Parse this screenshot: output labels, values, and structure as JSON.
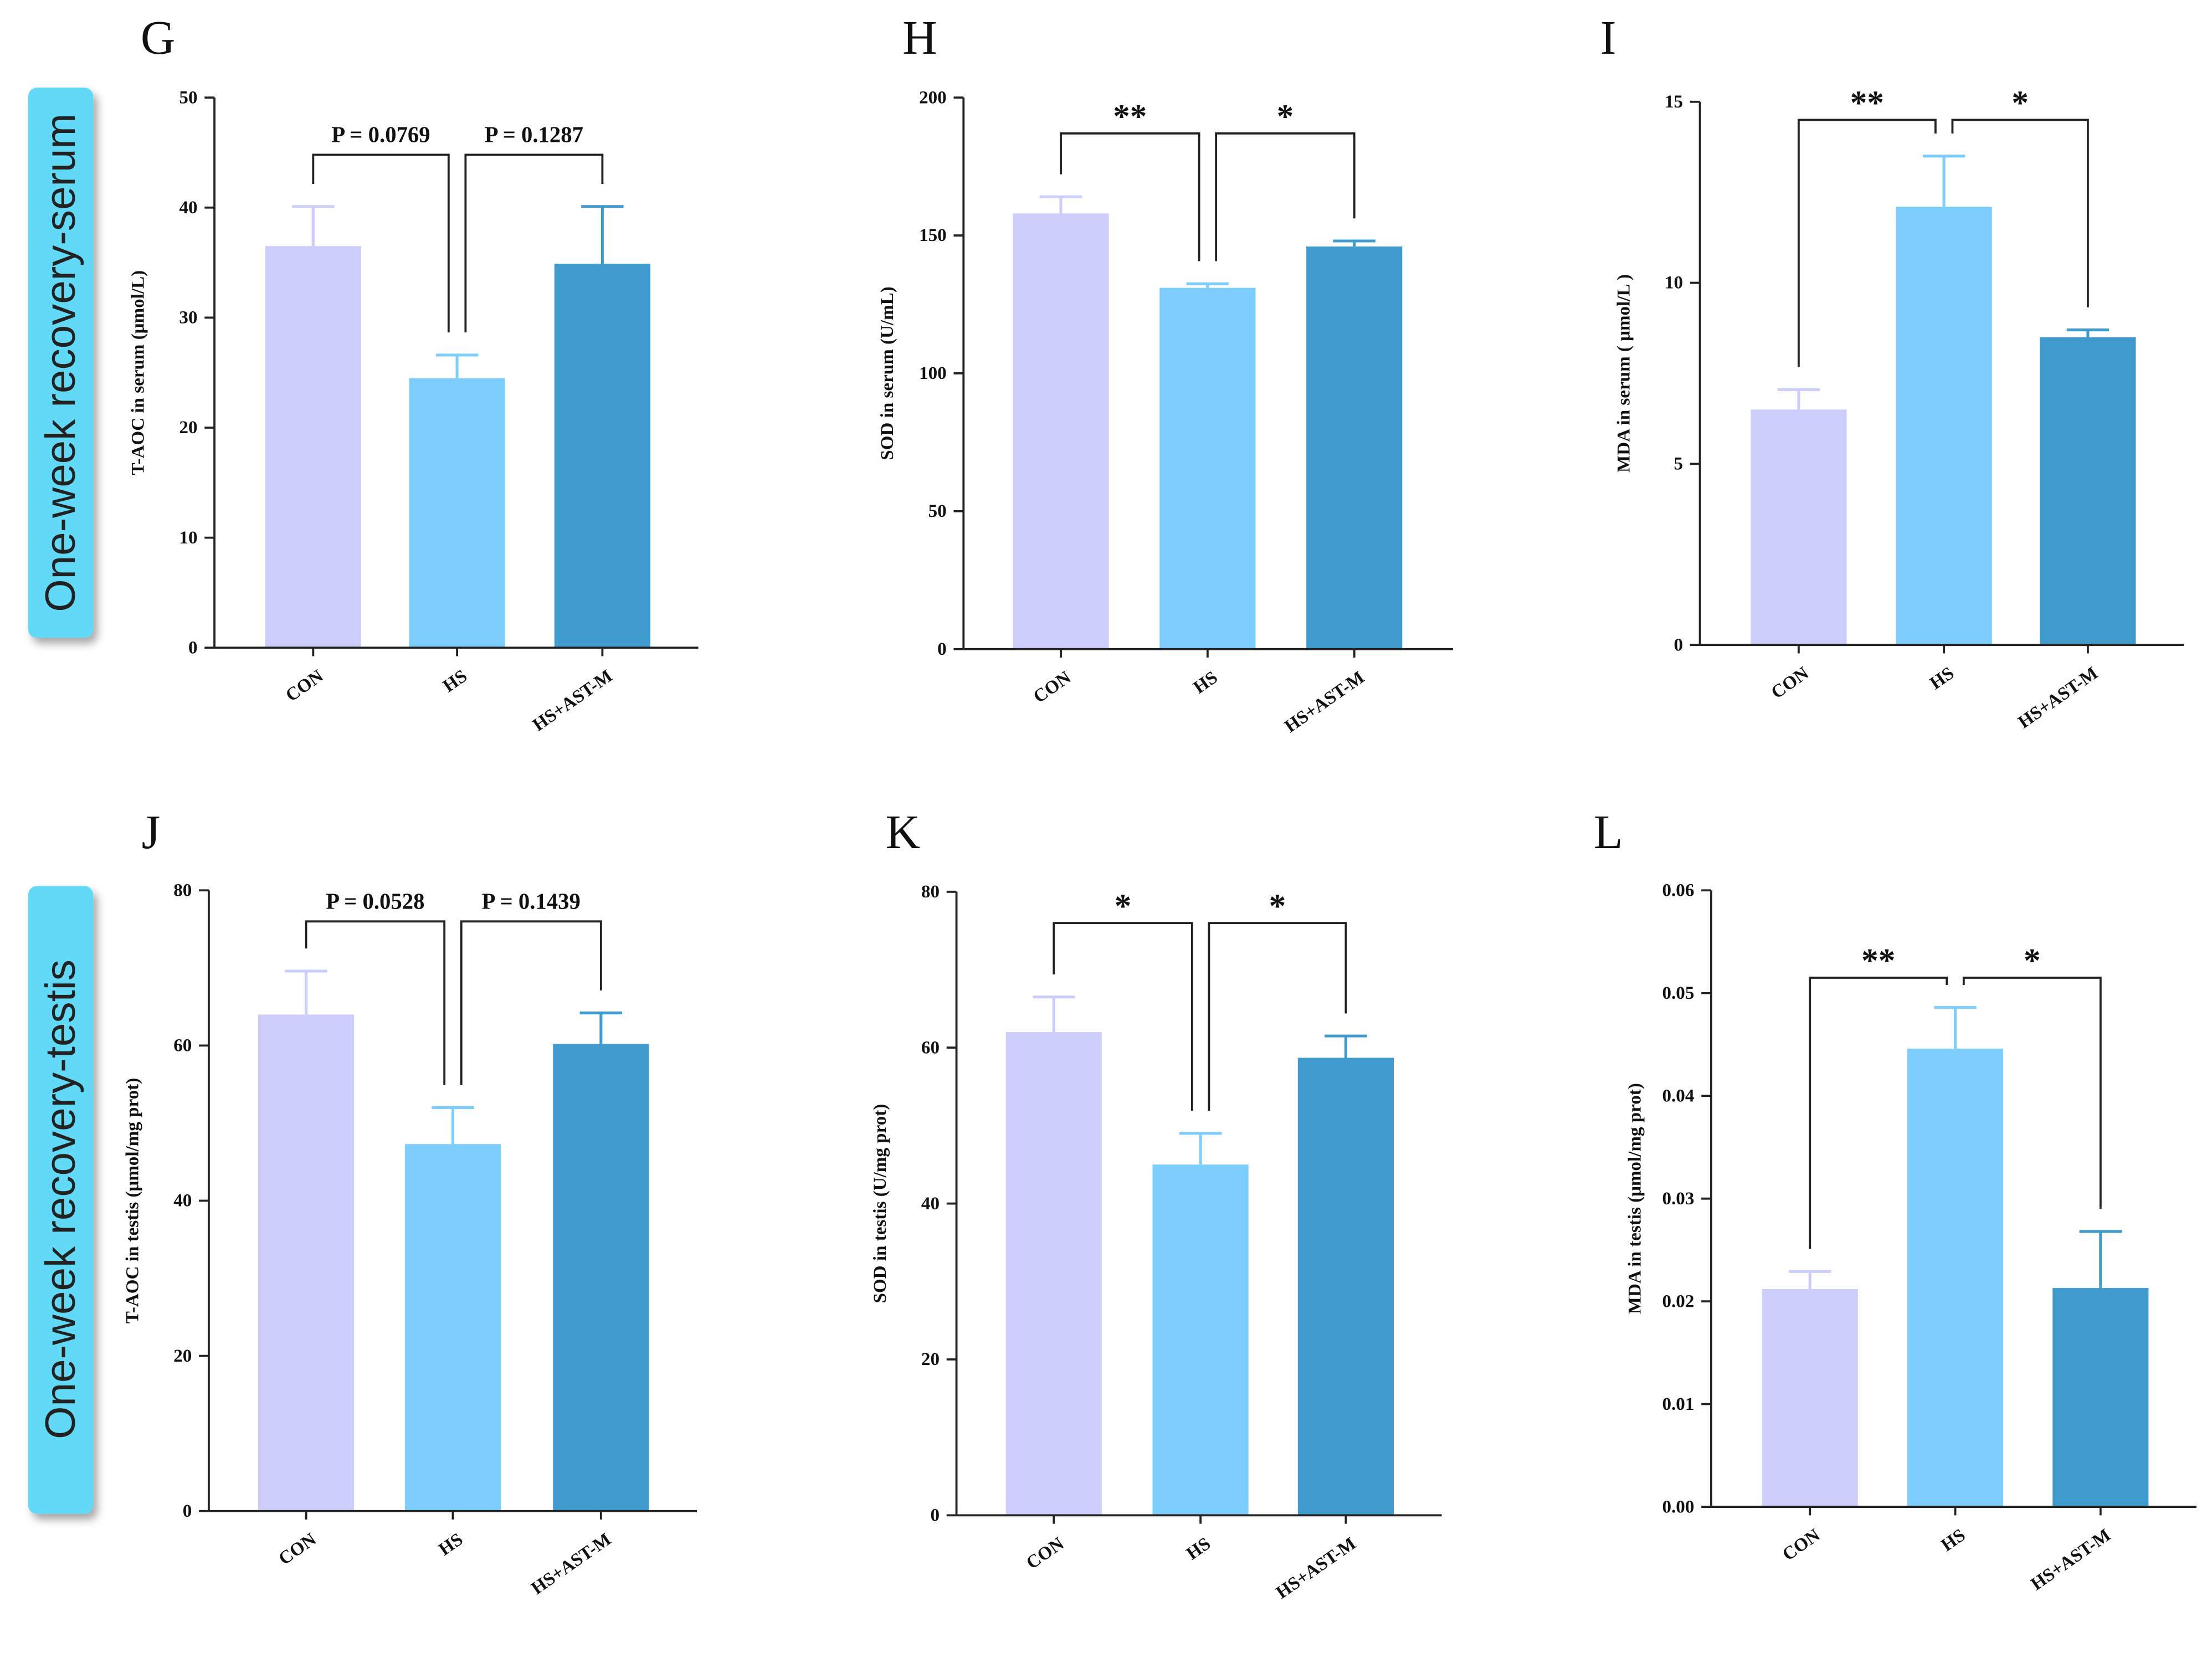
{
  "colors": {
    "CON": "#cdcdfb",
    "HS": "#7dcdfd",
    "HS+AST-M": "#3f9ace",
    "side_label_bg": "#62d9f6"
  },
  "row_labels": [
    "One-week recovery-serum",
    "One-week recovery-testis"
  ],
  "chart_data": [
    {
      "type": "bar",
      "letter": "G",
      "ylabel": "T-AOC in serum (μmol/L)",
      "categories": [
        "CON",
        "HS",
        "HS+AST-M"
      ],
      "values": [
        36.5,
        24.5,
        34.9
      ],
      "errors": [
        3.6,
        2.1,
        5.2
      ],
      "ylim": [
        0,
        50
      ],
      "yticks": [
        "0",
        "10",
        "20",
        "30",
        "40",
        "50"
      ],
      "tick_values": [
        0,
        10,
        20,
        30,
        40,
        50
      ],
      "comparisons": [
        {
          "pair": [
            0,
            1
          ],
          "label": "P = 0.0769",
          "level": 44.8
        },
        {
          "pair": [
            1,
            2
          ],
          "label": "P = 0.1287",
          "level": 44.8
        }
      ]
    },
    {
      "type": "bar",
      "letter": "H",
      "ylabel": "SOD in serum (U/mL)",
      "categories": [
        "CON",
        "HS",
        "HS+AST-M"
      ],
      "values": [
        158,
        131,
        146
      ],
      "errors": [
        6,
        1.5,
        2
      ],
      "ylim": [
        0,
        200
      ],
      "yticks": [
        "0",
        "50",
        "100",
        "150",
        "200"
      ],
      "tick_values": [
        0,
        50,
        100,
        150,
        200
      ],
      "comparisons": [
        {
          "pair": [
            0,
            1
          ],
          "label": "**",
          "level": 187
        },
        {
          "pair": [
            1,
            2
          ],
          "label": "*",
          "level": 187
        }
      ]
    },
    {
      "type": "bar",
      "letter": "I",
      "ylabel": "MDA in serum ( μmol/L )",
      "categories": [
        "CON",
        "HS",
        "HS+AST-M"
      ],
      "values": [
        6.5,
        12.1,
        8.5
      ],
      "errors": [
        0.55,
        1.4,
        0.2
      ],
      "ylim": [
        0,
        15
      ],
      "yticks": [
        "0",
        "5",
        "10",
        "15"
      ],
      "tick_values": [
        0,
        5,
        10,
        15
      ],
      "comparisons": [
        {
          "pair": [
            0,
            1
          ],
          "label": "**",
          "level": 14.5
        },
        {
          "pair": [
            1,
            2
          ],
          "label": "*",
          "level": 14.5
        }
      ]
    },
    {
      "type": "bar",
      "letter": "J",
      "ylabel": "T-AOC in testis (μmol/mg prot)",
      "categories": [
        "CON",
        "HS",
        "HS+AST-M"
      ],
      "values": [
        64,
        47.3,
        60.2
      ],
      "errors": [
        5.6,
        4.7,
        4
      ],
      "ylim": [
        0,
        80
      ],
      "yticks": [
        "0",
        "20",
        "40",
        "60",
        "80"
      ],
      "tick_values": [
        0,
        20,
        40,
        60,
        80
      ],
      "comparisons": [
        {
          "pair": [
            0,
            1
          ],
          "label": "P = 0.0528",
          "level": 76
        },
        {
          "pair": [
            1,
            2
          ],
          "label": "P = 0.1439",
          "level": 76
        }
      ]
    },
    {
      "type": "bar",
      "letter": "K",
      "ylabel": "SOD in testis (U/mg prot)",
      "categories": [
        "CON",
        "HS",
        "HS+AST-M"
      ],
      "values": [
        62,
        45,
        58.7
      ],
      "errors": [
        4.5,
        4,
        2.8
      ],
      "ylim": [
        0,
        80
      ],
      "yticks": [
        "0",
        "20",
        "40",
        "60",
        "80"
      ],
      "tick_values": [
        0,
        20,
        40,
        60,
        80
      ],
      "comparisons": [
        {
          "pair": [
            0,
            1
          ],
          "label": "*",
          "level": 76
        },
        {
          "pair": [
            1,
            2
          ],
          "label": "*",
          "level": 76
        }
      ]
    },
    {
      "type": "bar",
      "letter": "L",
      "ylabel": "MDA in testis (μmol/mg prot)",
      "categories": [
        "CON",
        "HS",
        "HS+AST-M"
      ],
      "values": [
        0.0212,
        0.0446,
        0.0213
      ],
      "errors": [
        0.0017,
        0.004,
        0.0055
      ],
      "ylim": [
        0,
        0.06
      ],
      "yticks": [
        "0.00",
        "0.01",
        "0.02",
        "0.03",
        "0.04",
        "0.05",
        "0.06"
      ],
      "tick_values": [
        0,
        0.01,
        0.02,
        0.03,
        0.04,
        0.05,
        0.06
      ],
      "comparisons": [
        {
          "pair": [
            0,
            1
          ],
          "label": "**",
          "level": 0.0515
        },
        {
          "pair": [
            1,
            2
          ],
          "label": "*",
          "level": 0.0515
        }
      ]
    }
  ]
}
